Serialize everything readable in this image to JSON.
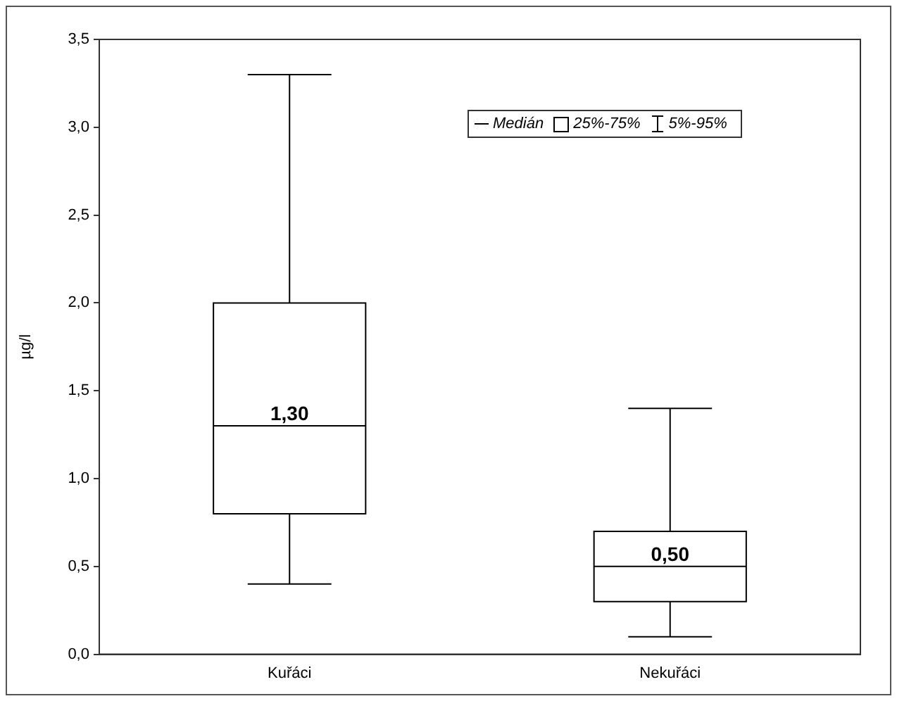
{
  "chart_data": {
    "type": "box",
    "ylabel": "µg/l",
    "categories": [
      "Kuřáci",
      "Nekuřáci"
    ],
    "boxes": [
      {
        "low": 0.4,
        "q1": 0.8,
        "median": 1.3,
        "q3": 2.0,
        "high": 3.3
      },
      {
        "low": 0.1,
        "q1": 0.3,
        "median": 0.5,
        "q3": 0.7,
        "high": 1.4
      }
    ],
    "ylim": [
      0,
      3.5
    ],
    "yticks": [
      {
        "value": 0,
        "label": "0,0"
      },
      {
        "value": 0.5,
        "label": "0,5"
      },
      {
        "value": 1,
        "label": "1,0"
      },
      {
        "value": 1.5,
        "label": "1,5"
      },
      {
        "value": 2,
        "label": "2,0"
      },
      {
        "value": 2.5,
        "label": "2,5"
      },
      {
        "value": 3,
        "label": "3,0"
      },
      {
        "value": 3.5,
        "label": "3,5"
      }
    ],
    "grid": false,
    "annotations": [
      {
        "text": "1,30",
        "x": "Kuřáci",
        "y": 1.3
      },
      {
        "text": "0,50",
        "x": "Nekuřáci",
        "y": 0.5
      },
      "Medián",
      "25%-75%",
      "5%-95%"
    ]
  }
}
